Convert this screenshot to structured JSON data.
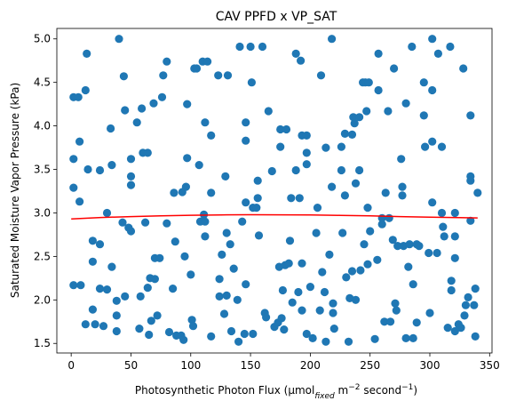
{
  "chart_data": {
    "type": "scatter",
    "title": "CAV PPFD x VP_SAT",
    "xlabel_parts": {
      "main": "Photosynthetic Photon Flux (μmol",
      "sub": "fixed",
      "mid": " m",
      "sup1": "−2",
      "end": " second",
      "sup2": "−1",
      "close": ")"
    },
    "ylabel": "Saturated Moisture Vapor Pressure (kPa)",
    "xlim": [
      -12,
      352
    ],
    "ylim": [
      1.39,
      5.12
    ],
    "xticks": [
      0,
      50,
      100,
      150,
      200,
      250,
      300,
      350
    ],
    "yticks": [
      "1.5",
      "2.0",
      "2.5",
      "3.0",
      "3.5",
      "4.0",
      "4.5",
      "5.0"
    ],
    "grid": false,
    "colors": {
      "points": "#1f77b4",
      "trend": "#ff0000"
    },
    "series": [
      {
        "type": "scatter",
        "points": [
          [
            2,
            4.33
          ],
          [
            2,
            3.62
          ],
          [
            2,
            3.29
          ],
          [
            2,
            2.17
          ],
          [
            6,
            4.33
          ],
          [
            7,
            3.82
          ],
          [
            7,
            3.13
          ],
          [
            8,
            2.17
          ],
          [
            12,
            4.41
          ],
          [
            12,
            1.72
          ],
          [
            13,
            4.83
          ],
          [
            14,
            3.5
          ],
          [
            18,
            2.68
          ],
          [
            18,
            2.44
          ],
          [
            18,
            1.89
          ],
          [
            20,
            1.72
          ],
          [
            24,
            2.64
          ],
          [
            24,
            3.49
          ],
          [
            24,
            2.13
          ],
          [
            27,
            1.7
          ],
          [
            30,
            3.0
          ],
          [
            30,
            2.12
          ],
          [
            33,
            3.97
          ],
          [
            34,
            3.55
          ],
          [
            34,
            2.38
          ],
          [
            38,
            1.99
          ],
          [
            38,
            1.82
          ],
          [
            38,
            1.64
          ],
          [
            40,
            5.0
          ],
          [
            43,
            2.89
          ],
          [
            44,
            4.57
          ],
          [
            45,
            4.18
          ],
          [
            45,
            2.04
          ],
          [
            48,
            2.83
          ],
          [
            50,
            3.62
          ],
          [
            50,
            3.42
          ],
          [
            50,
            3.32
          ],
          [
            50,
            2.79
          ],
          [
            55,
            4.04
          ],
          [
            57,
            1.67
          ],
          [
            58,
            2.04
          ],
          [
            59,
            4.2
          ],
          [
            60,
            3.69
          ],
          [
            62,
            2.89
          ],
          [
            64,
            3.69
          ],
          [
            64,
            2.14
          ],
          [
            65,
            1.6
          ],
          [
            66,
            2.25
          ],
          [
            67,
            1.76
          ],
          [
            69,
            4.26
          ],
          [
            70,
            2.48
          ],
          [
            70,
            2.24
          ],
          [
            72,
            1.82
          ],
          [
            74,
            2.48
          ],
          [
            76,
            4.33
          ],
          [
            77,
            4.58
          ],
          [
            80,
            4.74
          ],
          [
            80,
            2.88
          ],
          [
            82,
            1.63
          ],
          [
            85,
            2.13
          ],
          [
            86,
            3.23
          ],
          [
            87,
            2.67
          ],
          [
            88,
            1.59
          ],
          [
            92,
            1.59
          ],
          [
            93,
            3.24
          ],
          [
            94,
            1.54
          ],
          [
            95,
            2.5
          ],
          [
            96,
            3.3
          ],
          [
            97,
            4.25
          ],
          [
            97,
            3.63
          ],
          [
            100,
            2.29
          ],
          [
            101,
            1.77
          ],
          [
            102,
            1.7
          ],
          [
            103,
            4.66
          ],
          [
            105,
            4.66
          ],
          [
            107,
            3.55
          ],
          [
            108,
            2.9
          ],
          [
            110,
            4.74
          ],
          [
            111,
            2.98
          ],
          [
            112,
            4.04
          ],
          [
            112,
            2.9
          ],
          [
            112,
            2.73
          ],
          [
            114,
            4.74
          ],
          [
            117,
            3.23
          ],
          [
            117,
            3.89
          ],
          [
            117,
            1.58
          ],
          [
            123,
            4.58
          ],
          [
            124,
            2.24
          ],
          [
            124,
            2.04
          ],
          [
            126,
            2.52
          ],
          [
            128,
            1.84
          ],
          [
            129,
            3.42
          ],
          [
            130,
            2.77
          ],
          [
            130,
            2.05
          ],
          [
            131,
            4.58
          ],
          [
            133,
            2.64
          ],
          [
            134,
            1.64
          ],
          [
            136,
            2.36
          ],
          [
            139,
            2.0
          ],
          [
            140,
            1.52
          ],
          [
            141,
            4.91
          ],
          [
            143,
            2.9
          ],
          [
            145,
            1.61
          ],
          [
            146,
            4.04
          ],
          [
            146,
            3.83
          ],
          [
            146,
            3.12
          ],
          [
            146,
            2.18
          ],
          [
            150,
            4.91
          ],
          [
            151,
            4.5
          ],
          [
            152,
            3.06
          ],
          [
            152,
            1.61
          ],
          [
            155,
            3.06
          ],
          [
            156,
            3.37
          ],
          [
            156,
            3.17
          ],
          [
            157,
            2.74
          ],
          [
            160,
            4.91
          ],
          [
            162,
            1.85
          ],
          [
            163,
            1.8
          ],
          [
            165,
            4.17
          ],
          [
            168,
            3.48
          ],
          [
            170,
            1.69
          ],
          [
            173,
            1.74
          ],
          [
            174,
            2.38
          ],
          [
            175,
            3.96
          ],
          [
            175,
            3.76
          ],
          [
            176,
            1.79
          ],
          [
            177,
            2.11
          ],
          [
            178,
            1.66
          ],
          [
            179,
            2.4
          ],
          [
            180,
            3.96
          ],
          [
            182,
            2.42
          ],
          [
            183,
            2.68
          ],
          [
            184,
            3.17
          ],
          [
            185,
            1.97
          ],
          [
            188,
            4.83
          ],
          [
            188,
            3.49
          ],
          [
            190,
            2.09
          ],
          [
            191,
            3.17
          ],
          [
            192,
            4.75
          ],
          [
            193,
            3.89
          ],
          [
            193,
            2.42
          ],
          [
            193,
            1.88
          ],
          [
            197,
            3.89
          ],
          [
            197,
            3.69
          ],
          [
            197,
            3.56
          ],
          [
            197,
            1.61
          ],
          [
            200,
            2.15
          ],
          [
            202,
            1.56
          ],
          [
            205,
            2.77
          ],
          [
            206,
            3.06
          ],
          [
            208,
            1.88
          ],
          [
            209,
            4.58
          ],
          [
            210,
            2.32
          ],
          [
            212,
            2.09
          ],
          [
            213,
            3.75
          ],
          [
            213,
            1.52
          ],
          [
            216,
            2.52
          ],
          [
            218,
            5.0
          ],
          [
            218,
            3.3
          ],
          [
            219,
            1.96
          ],
          [
            219,
            1.85
          ],
          [
            220,
            1.67
          ],
          [
            226,
            3.76
          ],
          [
            226,
            3.49
          ],
          [
            227,
            2.77
          ],
          [
            229,
            3.91
          ],
          [
            229,
            3.2
          ],
          [
            230,
            2.26
          ],
          [
            232,
            1.52
          ],
          [
            233,
            2.02
          ],
          [
            235,
            3.9
          ],
          [
            235,
            2.33
          ],
          [
            236,
            4.1
          ],
          [
            237,
            4.03
          ],
          [
            238,
            3.34
          ],
          [
            238,
            2.0
          ],
          [
            241,
            4.1
          ],
          [
            241,
            3.49
          ],
          [
            242,
            2.34
          ],
          [
            244,
            4.5
          ],
          [
            245,
            2.64
          ],
          [
            246,
            4.5
          ],
          [
            247,
            4.17
          ],
          [
            248,
            3.06
          ],
          [
            248,
            2.41
          ],
          [
            249,
            4.5
          ],
          [
            250,
            2.79
          ],
          [
            254,
            1.55
          ],
          [
            256,
            2.46
          ],
          [
            257,
            4.83
          ],
          [
            257,
            4.41
          ],
          [
            260,
            2.94
          ],
          [
            260,
            2.87
          ],
          [
            262,
            1.75
          ],
          [
            263,
            3.23
          ],
          [
            265,
            4.17
          ],
          [
            266,
            2.94
          ],
          [
            267,
            1.75
          ],
          [
            269,
            2.69
          ],
          [
            270,
            4.66
          ],
          [
            271,
            1.96
          ],
          [
            272,
            1.88
          ],
          [
            273,
            2.62
          ],
          [
            276,
            3.62
          ],
          [
            277,
            3.3
          ],
          [
            277,
            3.2
          ],
          [
            278,
            2.62
          ],
          [
            280,
            4.26
          ],
          [
            280,
            1.56
          ],
          [
            282,
            2.38
          ],
          [
            283,
            2.64
          ],
          [
            285,
            4.91
          ],
          [
            286,
            1.56
          ],
          [
            286,
            2.18
          ],
          [
            289,
            2.64
          ],
          [
            289,
            1.74
          ],
          [
            291,
            2.62
          ],
          [
            295,
            4.5
          ],
          [
            295,
            4.12
          ],
          [
            296,
            3.76
          ],
          [
            299,
            2.54
          ],
          [
            300,
            1.85
          ],
          [
            302,
            5.0
          ],
          [
            302,
            4.41
          ],
          [
            302,
            3.82
          ],
          [
            302,
            3.12
          ],
          [
            306,
            2.54
          ],
          [
            307,
            4.83
          ],
          [
            310,
            3.76
          ],
          [
            310,
            3.0
          ],
          [
            311,
            2.84
          ],
          [
            312,
            2.73
          ],
          [
            315,
            1.68
          ],
          [
            317,
            4.91
          ],
          [
            318,
            2.22
          ],
          [
            318,
            2.11
          ],
          [
            321,
            3.0
          ],
          [
            321,
            2.73
          ],
          [
            321,
            2.48
          ],
          [
            321,
            1.64
          ],
          [
            324,
            1.72
          ],
          [
            326,
            1.68
          ],
          [
            328,
            4.66
          ],
          [
            329,
            1.82
          ],
          [
            330,
            1.94
          ],
          [
            332,
            2.03
          ],
          [
            334,
            4.12
          ],
          [
            334,
            3.42
          ],
          [
            334,
            3.37
          ],
          [
            334,
            2.91
          ],
          [
            337,
            1.94
          ],
          [
            338,
            2.13
          ],
          [
            338,
            1.58
          ],
          [
            340,
            3.23
          ]
        ]
      },
      {
        "type": "line",
        "points": [
          [
            0,
            2.93
          ],
          [
            25,
            2.947
          ],
          [
            50,
            2.958
          ],
          [
            75,
            2.967
          ],
          [
            100,
            2.973
          ],
          [
            125,
            2.977
          ],
          [
            150,
            2.979
          ],
          [
            175,
            2.978
          ],
          [
            200,
            2.976
          ],
          [
            225,
            2.972
          ],
          [
            250,
            2.966
          ],
          [
            275,
            2.958
          ],
          [
            300,
            2.95
          ],
          [
            325,
            2.945
          ],
          [
            340,
            2.942
          ]
        ]
      }
    ]
  }
}
